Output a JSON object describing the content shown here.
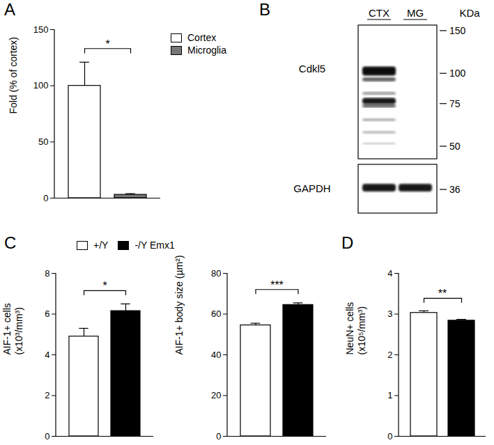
{
  "chart_data": [
    {
      "panel": "A",
      "type": "bar",
      "categories": [
        "Cortex",
        "Microglia"
      ],
      "values": [
        100,
        3
      ],
      "errors": [
        21,
        1
      ],
      "colors": [
        "#ffffff",
        "#777777"
      ],
      "ylabel": "Fold (% of cortex)",
      "ylim": [
        0,
        150
      ],
      "yticks": [
        0,
        50,
        100,
        150
      ],
      "significance": "*",
      "legend": "right",
      "tick_labels": "y",
      "grid": false
    },
    {
      "panel": "C",
      "type": "bar",
      "categories": [
        "+/Y",
        "-/Y Emx1"
      ],
      "values": [
        4.9,
        6.15
      ],
      "errors": [
        0.4,
        0.35
      ],
      "colors": [
        "#ffffff",
        "#000000"
      ],
      "ylabel": "AIF-1+ cells\n(x10³/mm³)",
      "ylim": [
        0,
        8
      ],
      "yticks": [
        0,
        2,
        4,
        6,
        8
      ],
      "significance": "*",
      "legend": "top",
      "tick_labels": "y",
      "grid": false
    },
    {
      "type": "bar",
      "categories": [
        "+/Y",
        "-/Y Emx1"
      ],
      "values": [
        54.5,
        64.5
      ],
      "errors": [
        1,
        1
      ],
      "colors": [
        "#ffffff",
        "#000000"
      ],
      "ylabel": "AIF-1+ body size (µm²)",
      "ylim": [
        0,
        80
      ],
      "yticks": [
        0,
        20,
        40,
        60,
        80
      ],
      "significance": "***",
      "tick_labels": "y",
      "grid": false
    },
    {
      "panel": "D",
      "type": "bar",
      "categories": [
        "+/Y",
        "-/Y Emx1"
      ],
      "values": [
        3.03,
        2.84
      ],
      "errors": [
        0.05,
        0.03
      ],
      "colors": [
        "#ffffff",
        "#000000"
      ],
      "ylabel": "NeuN+ cells\n(x10⁵/mm³)",
      "ylim": [
        0,
        4
      ],
      "yticks": [
        0,
        1,
        2,
        3,
        4
      ],
      "significance": "**",
      "tick_labels": "y",
      "grid": false
    }
  ],
  "blot": {
    "panel": "B",
    "lanes": [
      "CTX",
      "MG"
    ],
    "bands": [
      "Cdkl5",
      "GAPDH"
    ],
    "unit": "KDa",
    "markers": [
      150,
      100,
      75,
      50,
      36
    ]
  }
}
